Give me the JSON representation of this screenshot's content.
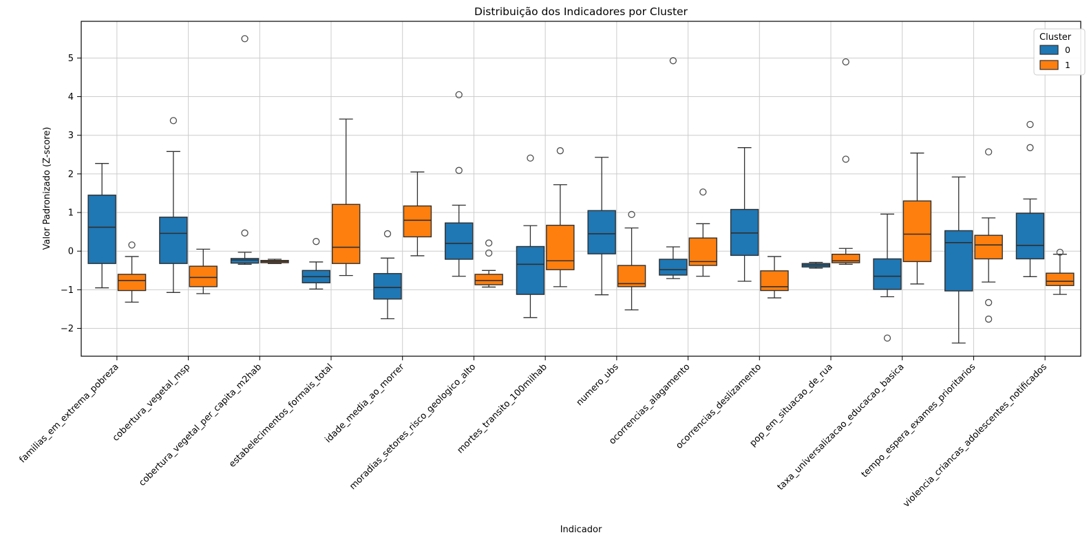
{
  "figure": {
    "background": "#ffffff",
    "grid_color": "#cccccc",
    "box_edge_color": "#2f2f2f",
    "spine_color": "#000000"
  },
  "chart_data": {
    "type": "boxplot",
    "title": "Distribuição dos Indicadores por Cluster",
    "xlabel": "Indicador",
    "ylabel": "Valor Padronizado (Z-score)",
    "legend_title": "Cluster",
    "legend_position": "upper right",
    "grid": true,
    "ylim": [
      -2.72,
      5.95
    ],
    "yticks": [
      -2,
      -1,
      0,
      1,
      2,
      3,
      4,
      5
    ],
    "categories": [
      "familias_em_extrema_pobreza",
      "cobertura_vegetal_msp",
      "cobertura_vegetal_per_capita_m2hab",
      "estabelecimentos_formais_total",
      "idade_media_ao_morrer",
      "moradias_setores_risco_geologico_alto",
      "mortes_transito_100milhab",
      "numero_ubs",
      "ocorrencias_alagamento",
      "ocorrencias_deslizamento",
      "pop_em_situacao_de_rua",
      "taxa_universalizacao_educacao_basica",
      "tempo_espera_exames_prioritarios",
      "violencia_criancas_adolescentes_notificados"
    ],
    "series": [
      {
        "name": "0",
        "color": "#1f77b4",
        "boxes": [
          {
            "whislo": -0.95,
            "q1": -0.32,
            "med": 0.62,
            "q3": 1.45,
            "whishi": 2.27,
            "outliers": []
          },
          {
            "whislo": -1.07,
            "q1": -0.32,
            "med": 0.46,
            "q3": 0.88,
            "whishi": 2.58,
            "outliers": [
              3.38
            ]
          },
          {
            "whislo": -0.34,
            "q1": -0.31,
            "med": -0.23,
            "q3": -0.19,
            "whishi": -0.03,
            "outliers": [
              0.47,
              5.5
            ]
          },
          {
            "whislo": -0.98,
            "q1": -0.82,
            "med": -0.66,
            "q3": -0.5,
            "whishi": -0.28,
            "outliers": [
              0.25
            ]
          },
          {
            "whislo": -1.75,
            "q1": -1.24,
            "med": -0.94,
            "q3": -0.58,
            "whishi": -0.18,
            "outliers": [
              0.45
            ]
          },
          {
            "whislo": -0.65,
            "q1": -0.21,
            "med": 0.2,
            "q3": 0.73,
            "whishi": 1.19,
            "outliers": [
              2.09,
              4.05
            ]
          },
          {
            "whislo": -1.72,
            "q1": -1.12,
            "med": -0.34,
            "q3": 0.12,
            "whishi": 0.66,
            "outliers": [
              2.41
            ]
          },
          {
            "whislo": -1.13,
            "q1": -0.07,
            "med": 0.45,
            "q3": 1.05,
            "whishi": 2.43,
            "outliers": []
          },
          {
            "whislo": -0.71,
            "q1": -0.62,
            "med": -0.48,
            "q3": -0.21,
            "whishi": 0.11,
            "outliers": [
              4.93
            ]
          },
          {
            "whislo": -0.78,
            "q1": -0.11,
            "med": 0.47,
            "q3": 1.08,
            "whishi": 2.68,
            "outliers": []
          },
          {
            "whislo": -0.44,
            "q1": -0.41,
            "med": -0.36,
            "q3": -0.32,
            "whishi": -0.29,
            "outliers": []
          },
          {
            "whislo": -1.18,
            "q1": -0.99,
            "med": -0.65,
            "q3": -0.2,
            "whishi": 0.96,
            "outliers": [
              -2.25
            ]
          },
          {
            "whislo": -2.38,
            "q1": -1.03,
            "med": 0.22,
            "q3": 0.53,
            "whishi": 1.92,
            "outliers": []
          },
          {
            "whislo": -0.66,
            "q1": -0.2,
            "med": 0.15,
            "q3": 0.98,
            "whishi": 1.35,
            "outliers": [
              2.68,
              3.28
            ]
          }
        ]
      },
      {
        "name": "1",
        "color": "#ff7f0e",
        "boxes": [
          {
            "whislo": -1.32,
            "q1": -1.02,
            "med": -0.76,
            "q3": -0.6,
            "whishi": -0.14,
            "outliers": [
              0.16
            ]
          },
          {
            "whislo": -1.1,
            "q1": -0.92,
            "med": -0.68,
            "q3": -0.39,
            "whishi": 0.05,
            "outliers": []
          },
          {
            "whislo": -0.32,
            "q1": -0.3,
            "med": -0.27,
            "q3": -0.24,
            "whishi": -0.21,
            "outliers": []
          },
          {
            "whislo": -0.63,
            "q1": -0.32,
            "med": 0.1,
            "q3": 1.21,
            "whishi": 3.42,
            "outliers": []
          },
          {
            "whislo": -0.12,
            "q1": 0.37,
            "med": 0.8,
            "q3": 1.17,
            "whishi": 2.05,
            "outliers": []
          },
          {
            "whislo": -0.93,
            "q1": -0.87,
            "med": -0.76,
            "q3": -0.6,
            "whishi": -0.5,
            "outliers": [
              -0.05,
              0.21
            ]
          },
          {
            "whislo": -0.92,
            "q1": -0.48,
            "med": -0.25,
            "q3": 0.67,
            "whishi": 1.72,
            "outliers": [
              2.6
            ]
          },
          {
            "whislo": -1.52,
            "q1": -0.92,
            "med": -0.84,
            "q3": -0.37,
            "whishi": 0.6,
            "outliers": [
              0.95
            ]
          },
          {
            "whislo": -0.65,
            "q1": -0.37,
            "med": -0.27,
            "q3": 0.34,
            "whishi": 0.71,
            "outliers": [
              1.53
            ]
          },
          {
            "whislo": -1.21,
            "q1": -1.02,
            "med": -0.92,
            "q3": -0.51,
            "whishi": -0.14,
            "outliers": []
          },
          {
            "whislo": -0.34,
            "q1": -0.3,
            "med": -0.25,
            "q3": -0.08,
            "whishi": 0.07,
            "outliers": [
              2.38,
              4.9
            ]
          },
          {
            "whislo": -0.85,
            "q1": -0.27,
            "med": 0.44,
            "q3": 1.3,
            "whishi": 2.54,
            "outliers": []
          },
          {
            "whislo": -0.8,
            "q1": -0.2,
            "med": 0.16,
            "q3": 0.41,
            "whishi": 0.86,
            "outliers": [
              -1.76,
              -1.33,
              2.57
            ]
          },
          {
            "whislo": -1.12,
            "q1": -0.89,
            "med": -0.78,
            "q3": -0.57,
            "whishi": -0.08,
            "outliers": [
              -0.03
            ]
          }
        ]
      }
    ]
  }
}
